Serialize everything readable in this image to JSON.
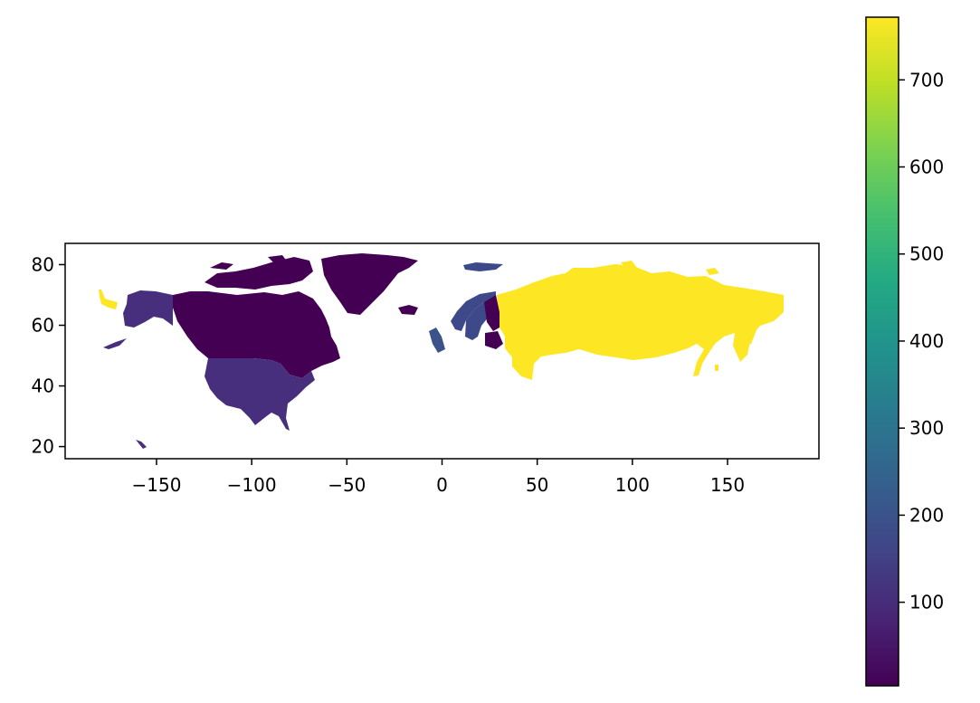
{
  "chart_data": {
    "type": "choropleth",
    "title": "",
    "xlabel": "",
    "ylabel": "",
    "xlim": [
      -198,
      198
    ],
    "ylim": [
      16,
      87
    ],
    "xticks": [
      -150,
      -100,
      -50,
      0,
      50,
      100,
      150
    ],
    "xtick_labels": [
      "−150",
      "−100",
      "−50",
      "0",
      "50",
      "100",
      "150"
    ],
    "yticks": [
      20,
      40,
      60,
      80
    ],
    "ytick_labels": [
      "20",
      "40",
      "60",
      "80"
    ],
    "colormap": "viridis",
    "colorbar": {
      "range": [
        4,
        772
      ],
      "ticks": [
        100,
        200,
        300,
        400,
        500,
        600,
        700
      ],
      "tick_labels": [
        "100",
        "200",
        "300",
        "400",
        "500",
        "600",
        "700"
      ]
    },
    "regions": [
      {
        "name": "Russia",
        "value": 770
      },
      {
        "name": "United States",
        "value": 130
      },
      {
        "name": "Sweden",
        "value": 130
      },
      {
        "name": "Norway",
        "value": 110
      },
      {
        "name": "Canada",
        "value": 8
      },
      {
        "name": "Greenland",
        "value": 6
      },
      {
        "name": "Finland",
        "value": 10
      },
      {
        "name": "Iceland",
        "value": 8
      },
      {
        "name": "United Kingdom",
        "value": 90
      },
      {
        "name": "Estonia",
        "value": 10
      }
    ]
  },
  "colors": {
    "high": "#fde725",
    "mid_high": "#7ad151",
    "mid": "#22a884",
    "mid_low": "#2a788e",
    "low_mid": "#414487",
    "low": "#440154"
  }
}
